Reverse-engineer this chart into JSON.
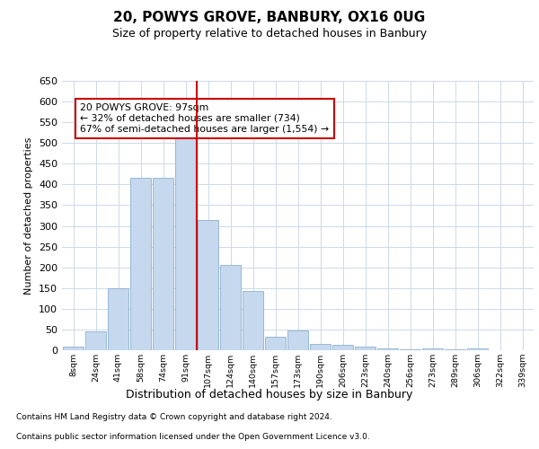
{
  "title_line1": "20, POWYS GROVE, BANBURY, OX16 0UG",
  "title_line2": "Size of property relative to detached houses in Banbury",
  "xlabel": "Distribution of detached houses by size in Banbury",
  "ylabel": "Number of detached properties",
  "categories": [
    "8sqm",
    "24sqm",
    "41sqm",
    "58sqm",
    "74sqm",
    "91sqm",
    "107sqm",
    "124sqm",
    "140sqm",
    "157sqm",
    "173sqm",
    "190sqm",
    "206sqm",
    "223sqm",
    "240sqm",
    "256sqm",
    "273sqm",
    "289sqm",
    "306sqm",
    "322sqm",
    "339sqm"
  ],
  "values": [
    8,
    45,
    150,
    415,
    415,
    530,
    315,
    205,
    142,
    33,
    48,
    15,
    13,
    8,
    4,
    2,
    5,
    2,
    5,
    0,
    0
  ],
  "bar_color": "#c5d8ee",
  "bar_edge_color": "#8ab0d0",
  "vline_x_idx": 5,
  "vline_color": "#cc0000",
  "annotation_text": "20 POWYS GROVE: 97sqm\n← 32% of detached houses are smaller (734)\n67% of semi-detached houses are larger (1,554) →",
  "annotation_box_color": "#ffffff",
  "annotation_box_edge": "#cc0000",
  "ylim": [
    0,
    650
  ],
  "yticks": [
    0,
    50,
    100,
    150,
    200,
    250,
    300,
    350,
    400,
    450,
    500,
    550,
    600,
    650
  ],
  "footnote1": "Contains HM Land Registry data © Crown copyright and database right 2024.",
  "footnote2": "Contains public sector information licensed under the Open Government Licence v3.0.",
  "bg_color": "#ffffff",
  "grid_color": "#ccd9e8"
}
